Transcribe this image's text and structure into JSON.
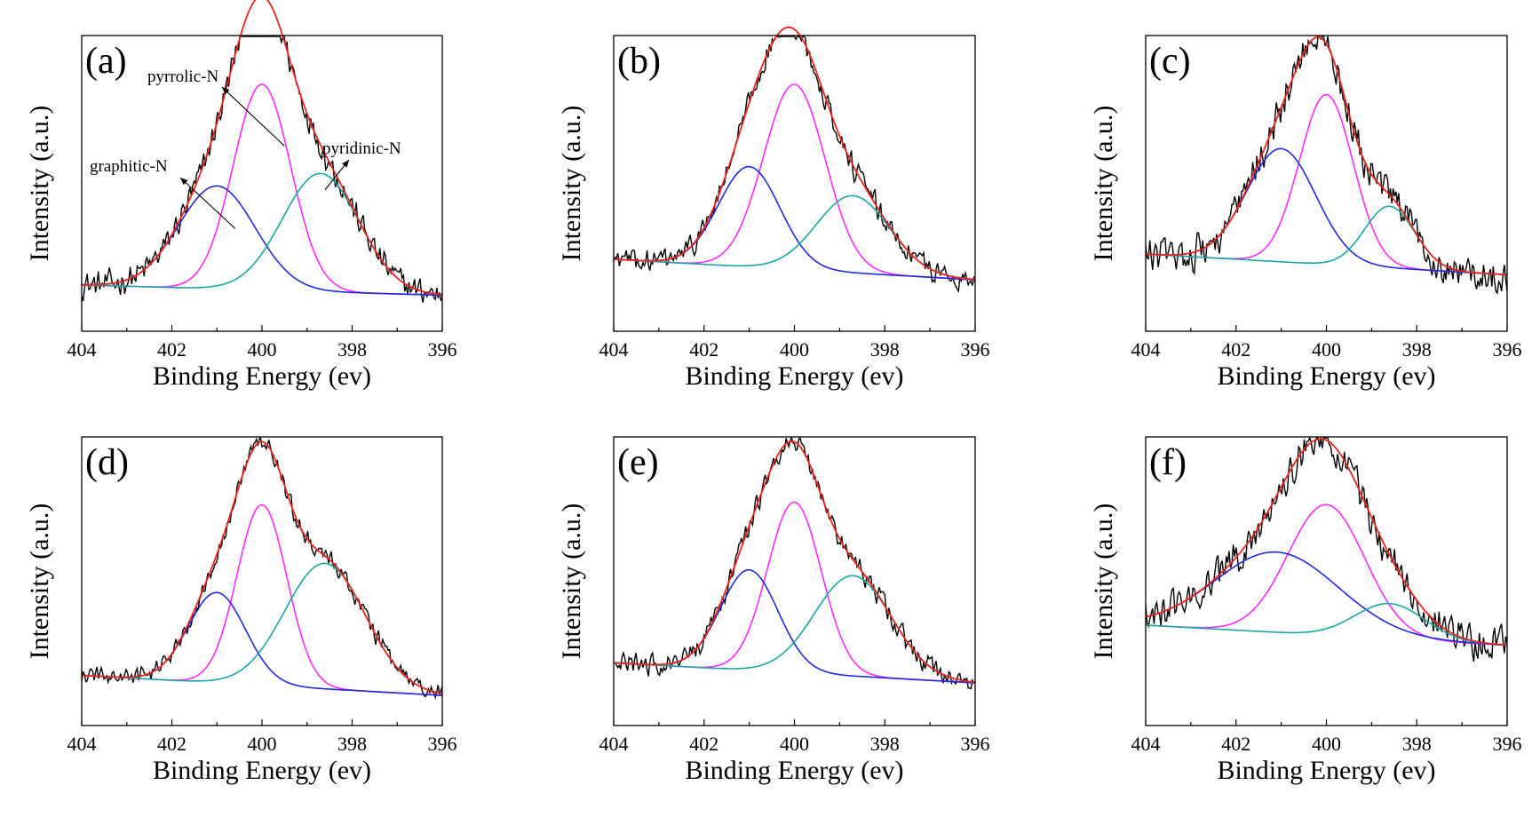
{
  "colors": {
    "raw": "#000000",
    "fit": "#e8251f",
    "pyrrolic": "#ff2bff",
    "graphitic": "#1f2bd8",
    "pyridinic": "#1aa6a0"
  },
  "chart_data": [
    {
      "type": "line",
      "panel_label": "(a)",
      "xlabel": "Binding Energy (ev)",
      "ylabel": "Intensity (a.u.)",
      "xlim": [
        404,
        396
      ],
      "xticks": [
        404,
        402,
        400,
        398,
        396
      ],
      "ylim": [
        0,
        1.15
      ],
      "baseline": {
        "left": 0.18,
        "right": 0.14
      },
      "components": [
        {
          "name": "pyrrolic-N",
          "center": 400.0,
          "height": 0.8,
          "fwhm": 1.5
        },
        {
          "name": "graphitic-N",
          "center": 401.0,
          "height": 0.4,
          "fwhm": 2.0
        },
        {
          "name": "pyridinic-N",
          "center": 398.7,
          "height": 0.46,
          "fwhm": 2.0
        }
      ],
      "noise": 0.045,
      "annotations": [
        {
          "text": "pyrrolic-N",
          "target_x": 399.5,
          "target_y": 0.72
        },
        {
          "text": "graphitic-N",
          "target_x": 400.6,
          "target_y": 0.4
        },
        {
          "text": "pyridinic-N",
          "target_x": 398.6,
          "target_y": 0.55
        }
      ]
    },
    {
      "type": "line",
      "panel_label": "(b)",
      "xlabel": "Binding Energy (ev)",
      "ylabel": "Intensity (a.u.)",
      "xlim": [
        404,
        396
      ],
      "xticks": [
        404,
        402,
        400,
        398,
        396
      ],
      "ylim": [
        0,
        1.15
      ],
      "baseline": {
        "left": 0.28,
        "right": 0.2
      },
      "components": [
        {
          "name": "pyrrolic-N",
          "center": 400.0,
          "height": 0.72,
          "fwhm": 1.6
        },
        {
          "name": "graphitic-N",
          "center": 401.0,
          "height": 0.39,
          "fwhm": 1.6
        },
        {
          "name": "pyridinic-N",
          "center": 398.7,
          "height": 0.3,
          "fwhm": 1.9
        }
      ],
      "noise": 0.04,
      "annotations": []
    },
    {
      "type": "line",
      "panel_label": "(c)",
      "xlabel": "Binding Energy (ev)",
      "ylabel": "Intensity (a.u.)",
      "xlim": [
        404,
        396
      ],
      "xticks": [
        404,
        402,
        400,
        398,
        396
      ],
      "ylim": [
        0,
        1.15
      ],
      "baseline": {
        "left": 0.3,
        "right": 0.22
      },
      "components": [
        {
          "name": "pyrrolic-N",
          "center": 400.0,
          "height": 0.66,
          "fwhm": 1.4
        },
        {
          "name": "graphitic-N",
          "center": 401.0,
          "height": 0.44,
          "fwhm": 1.8
        },
        {
          "name": "pyridinic-N",
          "center": 398.6,
          "height": 0.24,
          "fwhm": 1.3
        }
      ],
      "noise": 0.06,
      "annotations": []
    },
    {
      "type": "line",
      "panel_label": "(d)",
      "xlabel": "Binding Energy (ev)",
      "ylabel": "Intensity (a.u.)",
      "xlim": [
        404,
        396
      ],
      "xticks": [
        404,
        402,
        400,
        398,
        396
      ],
      "ylim": [
        0,
        1.15
      ],
      "baseline": {
        "left": 0.2,
        "right": 0.12
      },
      "components": [
        {
          "name": "pyrrolic-N",
          "center": 400.0,
          "height": 0.72,
          "fwhm": 1.3
        },
        {
          "name": "graphitic-N",
          "center": 401.0,
          "height": 0.36,
          "fwhm": 1.5
        },
        {
          "name": "pyridinic-N",
          "center": 398.6,
          "height": 0.5,
          "fwhm": 2.1
        }
      ],
      "noise": 0.03,
      "annotations": []
    },
    {
      "type": "line",
      "panel_label": "(e)",
      "xlabel": "Binding Energy (ev)",
      "ylabel": "Intensity (a.u.)",
      "xlim": [
        404,
        396
      ],
      "xticks": [
        404,
        402,
        400,
        398,
        396
      ],
      "ylim": [
        0,
        1.15
      ],
      "baseline": {
        "left": 0.25,
        "right": 0.17
      },
      "components": [
        {
          "name": "pyrrolic-N",
          "center": 400.0,
          "height": 0.68,
          "fwhm": 1.4
        },
        {
          "name": "graphitic-N",
          "center": 401.0,
          "height": 0.4,
          "fwhm": 1.5
        },
        {
          "name": "pyridinic-N",
          "center": 398.7,
          "height": 0.4,
          "fwhm": 2.0
        }
      ],
      "noise": 0.035,
      "annotations": []
    },
    {
      "type": "line",
      "panel_label": "(f)",
      "xlabel": "Binding Energy (ev)",
      "ylabel": "Intensity (a.u.)",
      "xlim": [
        404,
        396
      ],
      "xticks": [
        404,
        402,
        400,
        398,
        396
      ],
      "ylim": [
        0,
        1.15
      ],
      "baseline": {
        "left": 0.4,
        "right": 0.32
      },
      "components": [
        {
          "name": "pyrrolic-N",
          "center": 400.0,
          "height": 0.52,
          "fwhm": 2.0
        },
        {
          "name": "graphitic-N",
          "center": 401.1,
          "height": 0.32,
          "fwhm": 3.2
        },
        {
          "name": "pyridinic-N",
          "center": 398.6,
          "height": 0.14,
          "fwhm": 1.8
        }
      ],
      "noise": 0.06,
      "annotations": []
    }
  ]
}
